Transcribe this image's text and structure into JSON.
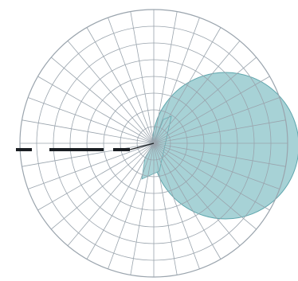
{
  "diagram": {
    "type": "polar-pattern",
    "grid": {
      "color": "#9aa4ad",
      "rings": 8,
      "spokes": 36
    },
    "pattern": {
      "shape": "cardioid-like lobe",
      "fill": "#a7d2d6",
      "stroke": "#5fa6ad",
      "direction": "right"
    },
    "needle": {
      "color": "#1b1f23",
      "direction": "left",
      "style": "dashed"
    }
  }
}
